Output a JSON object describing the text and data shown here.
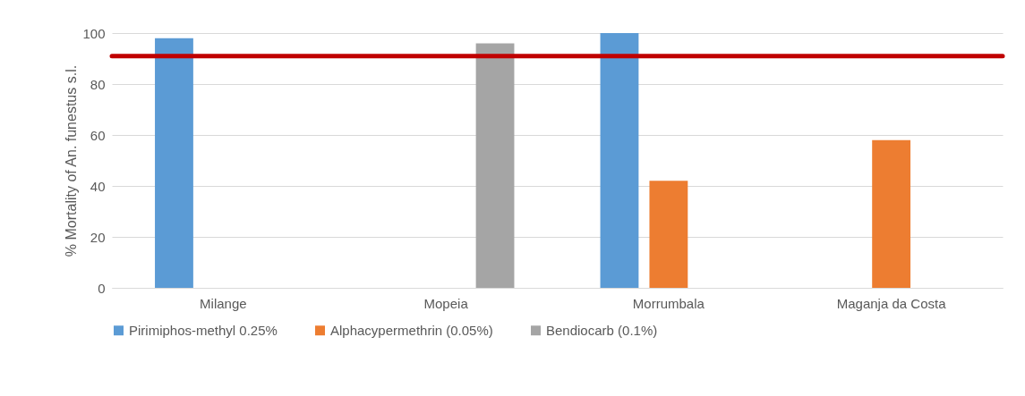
{
  "chart_data": {
    "type": "bar",
    "ylabel": "% Mortality of An. funestus s.l.",
    "categories": [
      "Milange",
      "Mopeia",
      "Morrumbala",
      "Maganja da Costa"
    ],
    "series": [
      {
        "name": "Pirimiphos-methyl 0.25%",
        "color": "#5b9bd5",
        "values": [
          98,
          null,
          100,
          null
        ]
      },
      {
        "name": "Alphacypermethrin (0.05%)",
        "color": "#ed7d31",
        "values": [
          null,
          null,
          42,
          58
        ]
      },
      {
        "name": "Bendiocarb (0.1%)",
        "color": "#a5a5a5",
        "values": [
          null,
          96,
          null,
          null
        ]
      }
    ],
    "ylim": [
      0,
      100
    ],
    "yticks": [
      0,
      20,
      40,
      60,
      80,
      100
    ],
    "grid": "y",
    "legend": "bottom",
    "ref_lines": [
      {
        "axis": "y",
        "value": 91,
        "color": "#c00000"
      }
    ]
  }
}
